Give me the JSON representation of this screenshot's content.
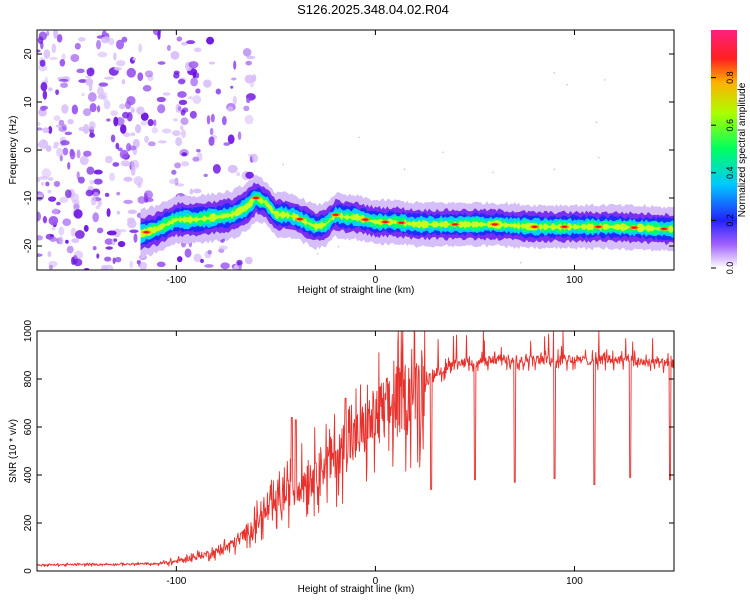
{
  "title": "S126.2025.348.04.02.R04",
  "colors": {
    "snr_line": "#e8312c",
    "spectro_base": "#7a1fe6",
    "axis": "#000000"
  },
  "chart_data": [
    {
      "type": "heatmap",
      "name": "spectrogram",
      "xlabel": "Height of straight line (km)",
      "ylabel": "Frequency (Hz)",
      "xlim": [
        -170,
        150
      ],
      "ylim": [
        -25,
        25
      ],
      "x_ticks": [
        -100,
        0,
        100
      ],
      "y_ticks": [
        -20,
        -10,
        0,
        10,
        20
      ],
      "colorbar": {
        "label": "Normalized spectral amplitude",
        "range": [
          0,
          1
        ],
        "ticks": [
          "0.0",
          "0.2",
          "0.4",
          "0.6",
          "0.8"
        ],
        "tick_values": [
          0.0,
          0.2,
          0.4,
          0.6,
          0.8
        ]
      },
      "ridge": {
        "description_values": "dominant frequency (Hz) along the signal track",
        "x": [
          -118,
          -110,
          -100,
          -90,
          -80,
          -72,
          -65,
          -60,
          -55,
          -50,
          -45,
          -40,
          -35,
          -30,
          -25,
          -20,
          -15,
          -10,
          -5,
          0,
          10,
          20,
          40,
          60,
          80,
          100,
          120,
          150
        ],
        "y": [
          -17.5,
          -16.5,
          -14.5,
          -14.5,
          -14,
          -13.5,
          -12,
          -10,
          -11,
          -13.5,
          -13.5,
          -14,
          -15,
          -16,
          -15.5,
          -13.5,
          -14,
          -14,
          -14.5,
          -15,
          -15,
          -15.5,
          -15.5,
          -15.5,
          -16,
          -16,
          -16,
          -16.5
        ],
        "peak_amplitude": 1.0
      },
      "noise_region": {
        "x_range": [
          -170,
          -60
        ],
        "amplitude_max": 0.3
      }
    },
    {
      "type": "line",
      "name": "snr",
      "xlabel": "Height of straight line (km)",
      "ylabel": "SNR (10 * v/v)",
      "xlim": [
        -170,
        150
      ],
      "ylim": [
        0,
        1000
      ],
      "x_ticks": [
        -100,
        0,
        100
      ],
      "y_ticks": [
        0,
        200,
        400,
        600,
        800,
        1000
      ],
      "series": [
        {
          "name": "SNR",
          "envelope_x": [
            -170,
            -110,
            -100,
            -90,
            -80,
            -70,
            -60,
            -50,
            -40,
            -30,
            -20,
            -10,
            0,
            10,
            20,
            30,
            40,
            60,
            80,
            100,
            120,
            140,
            150
          ],
          "envelope_y": [
            25,
            30,
            40,
            60,
            80,
            120,
            200,
            280,
            350,
            420,
            480,
            550,
            640,
            700,
            760,
            820,
            860,
            880,
            880,
            880,
            880,
            870,
            860
          ],
          "spikes_down": [
            {
              "x": 28,
              "y": 340
            },
            {
              "x": 50,
              "y": 380
            },
            {
              "x": 70,
              "y": 370
            },
            {
              "x": 90,
              "y": 385
            },
            {
              "x": 110,
              "y": 360
            },
            {
              "x": 128,
              "y": 390
            },
            {
              "x": 148,
              "y": 380
            }
          ],
          "spikes_up": [
            {
              "x": -42,
              "y": 640
            },
            {
              "x": -40,
              "y": 630
            },
            {
              "x": -30,
              "y": 450
            },
            {
              "x": -15,
              "y": 720
            }
          ]
        }
      ]
    }
  ]
}
